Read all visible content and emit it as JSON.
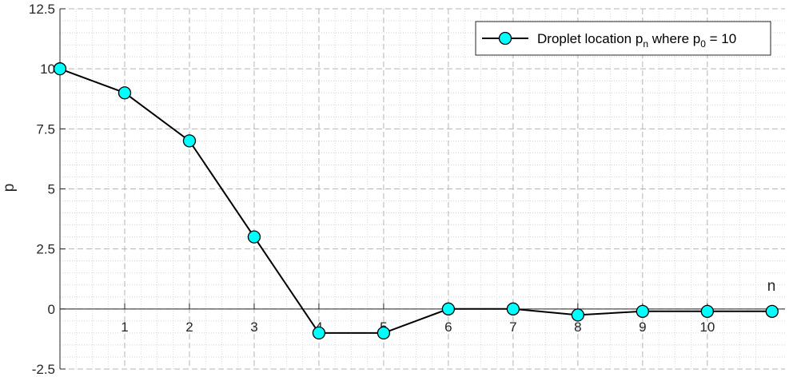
{
  "chart_data": {
    "type": "line",
    "title": "",
    "xlabel": "n",
    "ylabel": "p",
    "xlim": [
      0,
      11.2
    ],
    "ylim": [
      -2.5,
      12.5
    ],
    "x_ticks": [
      1,
      2,
      3,
      4,
      5,
      6,
      7,
      8,
      9,
      10
    ],
    "y_ticks": [
      -2.5,
      0,
      2.5,
      5,
      7.5,
      10,
      12.5
    ],
    "y_tick_labels": [
      "-2.5",
      "0",
      "2.5",
      "5",
      "7.5",
      "10",
      "12.5"
    ],
    "x_tick_labels": [
      "1",
      "2",
      "3",
      "4",
      "5",
      "6",
      "7",
      "8",
      "9",
      "10"
    ],
    "grid": "major dashed, minor dotted",
    "axes_through_origin": true,
    "legend": {
      "placement": "top-right",
      "entries": [
        {
          "text_main": "Droplet location p",
          "text_sub_1": "n",
          "text_mid": " where p",
          "text_sub_2": "0",
          "text_end": " = 10"
        }
      ]
    },
    "series": [
      {
        "name": "Droplet location pn where p0 = 10",
        "line_color": "#000000",
        "marker_fill": "#00ffff",
        "marker_edge": "#000000",
        "x": [
          0,
          1,
          2,
          3,
          4,
          5,
          6,
          7,
          8,
          9,
          10,
          11
        ],
        "y": [
          10,
          9,
          7,
          3,
          -1,
          -1,
          0,
          0,
          -0.25,
          -0.1,
          -0.1,
          -0.1
        ]
      }
    ]
  }
}
